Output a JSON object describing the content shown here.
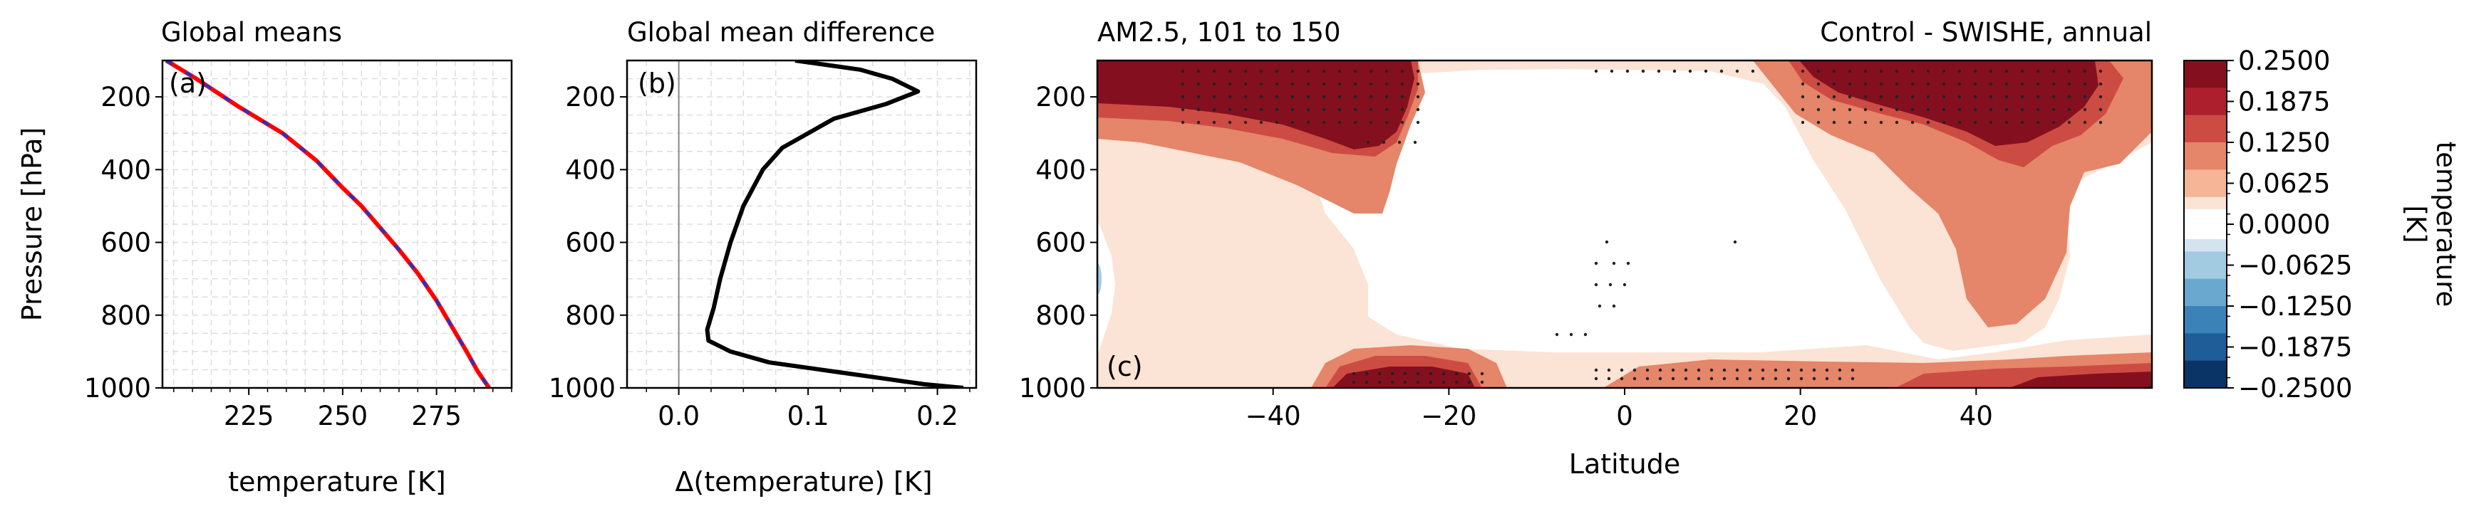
{
  "panel_a": {
    "title": "Global means",
    "tag": "(a)",
    "xlabel": "temperature [K]",
    "ylabel": "Pressure [hPa]"
  },
  "panel_b": {
    "title": "Global mean difference",
    "tag": "(b)",
    "xlabel": "Δ(temperature) [K]"
  },
  "panel_c": {
    "title_left": "AM2.5, 101 to 150",
    "title_right": "Control - SWISHE, annual",
    "tag": "(c)",
    "xlabel": "Latitude"
  },
  "colorbar": {
    "label_line1": "temperature",
    "label_line2": "[K]",
    "tick_labels": [
      "0.2500",
      "0.1875",
      "0.1250",
      "0.0625",
      "0.0000",
      "−0.0625",
      "−0.1250",
      "−0.1875",
      "−0.2500"
    ]
  },
  "colors": {
    "series_control": "#ff0000",
    "series_swishe": "#2233cc",
    "difference": "#000000",
    "levels_positive": [
      "#fbe3d5",
      "#f5b596",
      "#e58569",
      "#cc4c43",
      "#ad1f2c",
      "#84101f"
    ],
    "levels_negative": [
      "#d3e4f0",
      "#a2cbe2",
      "#6aa8cf",
      "#3b82b9",
      "#1f5d99",
      "#0b3466"
    ]
  },
  "chart_data": [
    {
      "type": "line",
      "panel": "a",
      "title": "Global means",
      "xlabel": "temperature [K]",
      "ylabel": "Pressure [hPa]",
      "xlim": [
        202,
        295
      ],
      "ylim": [
        1000,
        100
      ],
      "x_ticks": [
        225,
        250,
        275
      ],
      "y_ticks": [
        200,
        400,
        600,
        800,
        1000
      ],
      "grid": true,
      "series": [
        {
          "style": "solid",
          "x": [
            203,
            211,
            222,
            234,
            243,
            250,
            255,
            260,
            265,
            270,
            275,
            279,
            283,
            286,
            289
          ],
          "y": [
            100,
            150,
            225,
            300,
            375,
            450,
            500,
            560,
            620,
            685,
            760,
            830,
            900,
            955,
            1000
          ]
        },
        {
          "style": "dashed",
          "x": [
            203,
            211,
            222,
            234,
            243,
            250,
            255,
            260,
            265,
            270,
            275,
            279,
            283,
            286,
            289
          ],
          "y": [
            100,
            150,
            225,
            300,
            375,
            450,
            500,
            560,
            620,
            685,
            760,
            830,
            900,
            955,
            1000
          ]
        }
      ]
    },
    {
      "type": "line",
      "panel": "b",
      "title": "Global mean difference",
      "xlabel": "Δ(temperature) [K]",
      "xlim": [
        -0.04,
        0.23
      ],
      "ylim": [
        1000,
        100
      ],
      "x_ticks": [
        0.0,
        0.1,
        0.2
      ],
      "x_tick_labels": [
        "0.0",
        "0.1",
        "0.2"
      ],
      "y_ticks": [
        200,
        400,
        600,
        800,
        1000
      ],
      "grid": true,
      "zero_line": 0.0,
      "series": [
        {
          "x": [
            0.09,
            0.14,
            0.165,
            0.185,
            0.16,
            0.12,
            0.1,
            0.08,
            0.065,
            0.05,
            0.04,
            0.032,
            0.027,
            0.022,
            0.023,
            0.04,
            0.07,
            0.12,
            0.16,
            0.19,
            0.22
          ],
          "y": [
            100,
            125,
            150,
            185,
            220,
            260,
            300,
            340,
            400,
            500,
            600,
            700,
            780,
            840,
            870,
            900,
            930,
            955,
            975,
            990,
            1000
          ]
        }
      ]
    },
    {
      "type": "heatmap",
      "panel": "c",
      "title": "AM2.5, 101 to 150",
      "subtitle": "Control - SWISHE, annual",
      "xlabel": "Latitude",
      "xlim": [
        -60,
        60
      ],
      "ylim": [
        1000,
        100
      ],
      "x_ticks": [
        -40,
        -20,
        0,
        20,
        40
      ],
      "y_ticks": [
        200,
        400,
        600,
        800,
        1000
      ],
      "levels": [
        -0.25,
        -0.1875,
        -0.125,
        -0.0625,
        0.0,
        0.0625,
        0.125,
        0.1875,
        0.25
      ],
      "colorbar_label": "temperature [K]",
      "features": [
        {
          "name": "upper-tropospheric warm maximum, northern",
          "lat": [
            20,
            55
          ],
          "pressure": [
            130,
            320
          ],
          "value": 0.25
        },
        {
          "name": "upper-tropospheric warm maximum, southern",
          "lat": [
            -60,
            -20
          ],
          "pressure": [
            120,
            270
          ],
          "value": 0.22
        },
        {
          "name": "near-surface warm band, southern",
          "lat": [
            -33,
            -17
          ],
          "pressure": [
            920,
            1000
          ],
          "value": 0.25
        },
        {
          "name": "near-surface warm band, northern",
          "lat": [
            30,
            60
          ],
          "pressure": [
            920,
            1000
          ],
          "value": 0.22
        },
        {
          "name": "tropical near-zero region",
          "lat": [
            -15,
            17
          ],
          "pressure": [
            250,
            940
          ],
          "value": 0.0
        },
        {
          "name": "small negative spot",
          "lat": [
            -60,
            -59
          ],
          "pressure": [
            580,
            640
          ],
          "value": -0.06
        }
      ]
    }
  ]
}
